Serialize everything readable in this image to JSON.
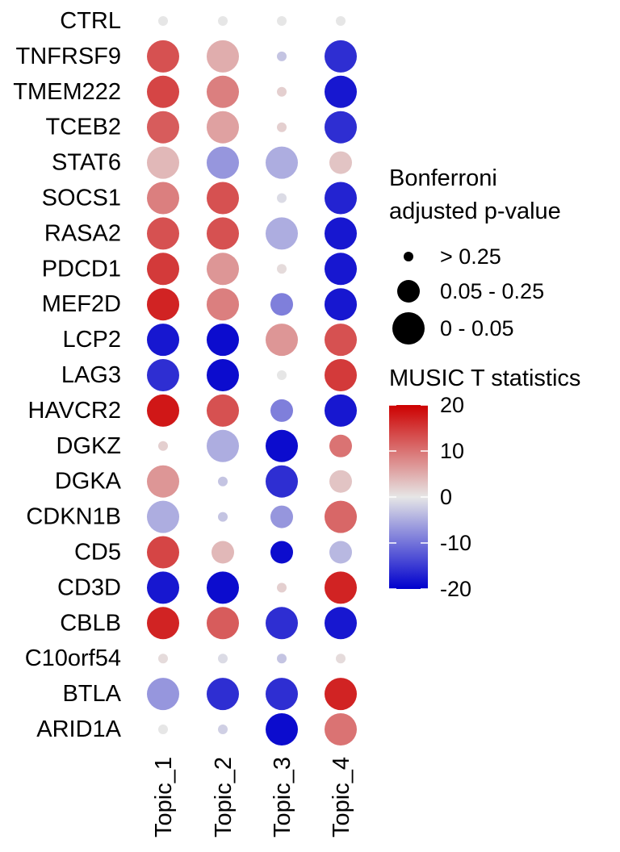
{
  "chart_data": {
    "type": "dotplot",
    "title": "",
    "xlabel": "",
    "ylabel": "",
    "topics": [
      "Topic_1",
      "Topic_2",
      "Topic_3",
      "Topic_4"
    ],
    "genes": [
      "CTRL",
      "TNFRSF9",
      "TMEM222",
      "TCEB2",
      "STAT6",
      "SOCS1",
      "RASA2",
      "PDCD1",
      "MEF2D",
      "LCP2",
      "LAG3",
      "HAVCR2",
      "DGKZ",
      "DGKA",
      "CDKN1B",
      "CD5",
      "CD3D",
      "CBLB",
      "C10orf54",
      "BTLA",
      "ARID1A"
    ],
    "t_statistic": [
      [
        0,
        0,
        0,
        0
      ],
      [
        13,
        5,
        -3,
        -16
      ],
      [
        14,
        9,
        2,
        -18
      ],
      [
        12,
        6,
        2,
        -16
      ],
      [
        4,
        -7,
        -5,
        3
      ],
      [
        9,
        13,
        -1,
        -17
      ],
      [
        13,
        13,
        -5,
        -18
      ],
      [
        15,
        7,
        1,
        -18
      ],
      [
        17,
        9,
        -9,
        -18
      ],
      [
        -18,
        -19,
        7,
        13
      ],
      [
        -16,
        -19,
        0,
        15
      ],
      [
        18,
        13,
        -9,
        -18
      ],
      [
        2,
        -5,
        -19,
        10
      ],
      [
        7,
        -3,
        -16,
        3
      ],
      [
        -5,
        -3,
        -7,
        11
      ],
      [
        14,
        4,
        -19,
        -4
      ],
      [
        -18,
        -19,
        2,
        17
      ],
      [
        17,
        12,
        -16,
        -18
      ],
      [
        1,
        -1,
        -3,
        1
      ],
      [
        -7,
        -16,
        -16,
        17
      ],
      [
        0,
        -2,
        -19,
        10
      ]
    ],
    "p_value_category": [
      [
        "> 0.25",
        "> 0.25",
        "> 0.25",
        "> 0.25"
      ],
      [
        "0 - 0.05",
        "0 - 0.05",
        "> 0.25",
        "0 - 0.05"
      ],
      [
        "0 - 0.05",
        "0 - 0.05",
        "> 0.25",
        "0 - 0.05"
      ],
      [
        "0 - 0.05",
        "0 - 0.05",
        "> 0.25",
        "0 - 0.05"
      ],
      [
        "0 - 0.05",
        "0 - 0.05",
        "0 - 0.05",
        "0.05 - 0.25"
      ],
      [
        "0 - 0.05",
        "0 - 0.05",
        "> 0.25",
        "0 - 0.05"
      ],
      [
        "0 - 0.05",
        "0 - 0.05",
        "0 - 0.05",
        "0 - 0.05"
      ],
      [
        "0 - 0.05",
        "0 - 0.05",
        "> 0.25",
        "0 - 0.05"
      ],
      [
        "0 - 0.05",
        "0 - 0.05",
        "0.05 - 0.25",
        "0 - 0.05"
      ],
      [
        "0 - 0.05",
        "0 - 0.05",
        "0 - 0.05",
        "0 - 0.05"
      ],
      [
        "0 - 0.05",
        "0 - 0.05",
        "> 0.25",
        "0 - 0.05"
      ],
      [
        "0 - 0.05",
        "0 - 0.05",
        "0.05 - 0.25",
        "0 - 0.05"
      ],
      [
        "> 0.25",
        "0 - 0.05",
        "0 - 0.05",
        "0.05 - 0.25"
      ],
      [
        "0 - 0.05",
        "> 0.25",
        "0 - 0.05",
        "0.05 - 0.25"
      ],
      [
        "0 - 0.05",
        "> 0.25",
        "0.05 - 0.25",
        "0 - 0.05"
      ],
      [
        "0 - 0.05",
        "0.05 - 0.25",
        "0.05 - 0.25",
        "0.05 - 0.25"
      ],
      [
        "0 - 0.05",
        "0 - 0.05",
        "> 0.25",
        "0 - 0.05"
      ],
      [
        "0 - 0.05",
        "0 - 0.05",
        "0 - 0.05",
        "0 - 0.05"
      ],
      [
        "> 0.25",
        "> 0.25",
        "> 0.25",
        "> 0.25"
      ],
      [
        "0 - 0.05",
        "0 - 0.05",
        "0 - 0.05",
        "0 - 0.05"
      ],
      [
        "> 0.25",
        "> 0.25",
        "0 - 0.05",
        "0 - 0.05"
      ]
    ],
    "size_legend": {
      "title_line1": "Bonferroni",
      "title_line2": "adjusted p-value",
      "entries": [
        "> 0.25",
        "0.05 - 0.25",
        "0 - 0.05"
      ]
    },
    "color_legend": {
      "title": "MUSIC T statistics",
      "range": [
        -20,
        20
      ],
      "ticks": [
        20,
        10,
        0,
        -10,
        -20
      ],
      "low_color": "#0000CD",
      "mid_color": "#E6E6E6",
      "high_color": "#CD0000"
    }
  }
}
